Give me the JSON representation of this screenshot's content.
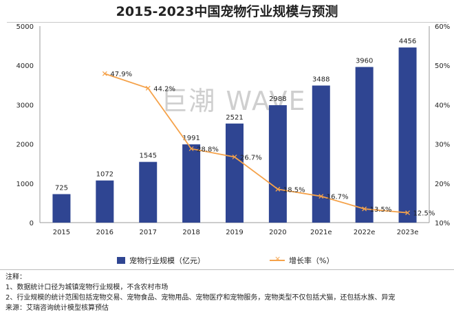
{
  "colors": {
    "bar": "#2f4592",
    "line": "#f5a24a",
    "text": "#222222",
    "watermark": "#cfcfcf"
  },
  "chart_data": {
    "type": "bar",
    "title": "2015-2023中国宠物行业规模与预测",
    "categories": [
      "2015",
      "2016",
      "2017",
      "2018",
      "2019",
      "2020",
      "2021e",
      "2022e",
      "2023e"
    ],
    "series": [
      {
        "name": "宠物行业规模（亿元）",
        "type": "bar",
        "axis": "left",
        "values": [
          725,
          1072,
          1545,
          1991,
          2521,
          2988,
          3488,
          3960,
          4456
        ]
      },
      {
        "name": "增长率（%）",
        "type": "line",
        "axis": "right",
        "values": [
          null,
          47.9,
          44.2,
          28.8,
          26.7,
          18.5,
          16.7,
          13.5,
          12.5
        ],
        "labels": [
          "",
          "47.9%",
          "44.2%",
          "28.8%",
          "26.7%",
          "18.5%",
          "16.7%",
          "13.5%",
          "12.5%"
        ]
      }
    ],
    "y_left": {
      "min": 0,
      "max": 5000,
      "ticks": [
        0,
        1000,
        2000,
        3000,
        4000,
        5000
      ]
    },
    "y_right": {
      "min": 10,
      "max": 60,
      "ticks": [
        "10%",
        "20%",
        "30%",
        "40%",
        "50%",
        "60%"
      ]
    },
    "grid": false,
    "legend": "bottom"
  },
  "watermark": "巨潮 WAVE",
  "notes": {
    "heading": "注释：",
    "items": [
      "1、数据统计口径为城镇宠物行业规模，不含农村市场",
      "2、行业规模的统计范围包括宠物交易、宠物食品、宠物用品、宠物医疗和宠物服务，宠物类型不仅包括犬猫，还包括水族、异宠"
    ],
    "source": "来源：艾瑞咨询统计模型核算预估"
  }
}
